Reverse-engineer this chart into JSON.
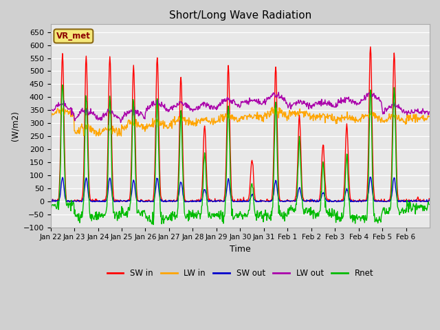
{
  "title": "Short/Long Wave Radiation",
  "ylabel": "(W/m2)",
  "xlabel": "Time",
  "annotation": "VR_met",
  "ylim": [
    -100,
    680
  ],
  "yticks": [
    -100,
    -50,
    0,
    50,
    100,
    150,
    200,
    250,
    300,
    350,
    400,
    450,
    500,
    550,
    600,
    650
  ],
  "plot_bg_color": "#e8e8e8",
  "fig_bg_color": "#d0d0d0",
  "legend_labels": [
    "SW in",
    "LW in",
    "SW out",
    "LW out",
    "Rnet"
  ],
  "colors": {
    "SW in": "#ff0000",
    "LW in": "#ffa500",
    "SW out": "#0000cc",
    "LW out": "#aa00aa",
    "Rnet": "#00bb00"
  },
  "xtick_labels": [
    "Jan 22",
    "Jan 23",
    "Jan 24",
    "Jan 25",
    "Jan 26",
    "Jan 27",
    "Jan 28",
    "Jan 29",
    "Jan 30",
    "Jan 31",
    "Feb 1",
    "Feb 2",
    "Feb 3",
    "Feb 4",
    "Feb 5",
    "Feb 6"
  ],
  "n_days": 16,
  "pts_per_day": 48,
  "sw_in_peaks": [
    570,
    555,
    565,
    515,
    555,
    480,
    290,
    520,
    160,
    520,
    330,
    220,
    295,
    600,
    575,
    10
  ],
  "lw_in_base": [
    325,
    260,
    255,
    280,
    280,
    295,
    300,
    305,
    320,
    325,
    330,
    320,
    310,
    310,
    300,
    320
  ],
  "lw_out_base": [
    340,
    315,
    308,
    318,
    345,
    350,
    352,
    360,
    375,
    378,
    362,
    365,
    372,
    375,
    335,
    342
  ],
  "sw_out_factor": 0.16,
  "sigma_narrow": 0.06
}
